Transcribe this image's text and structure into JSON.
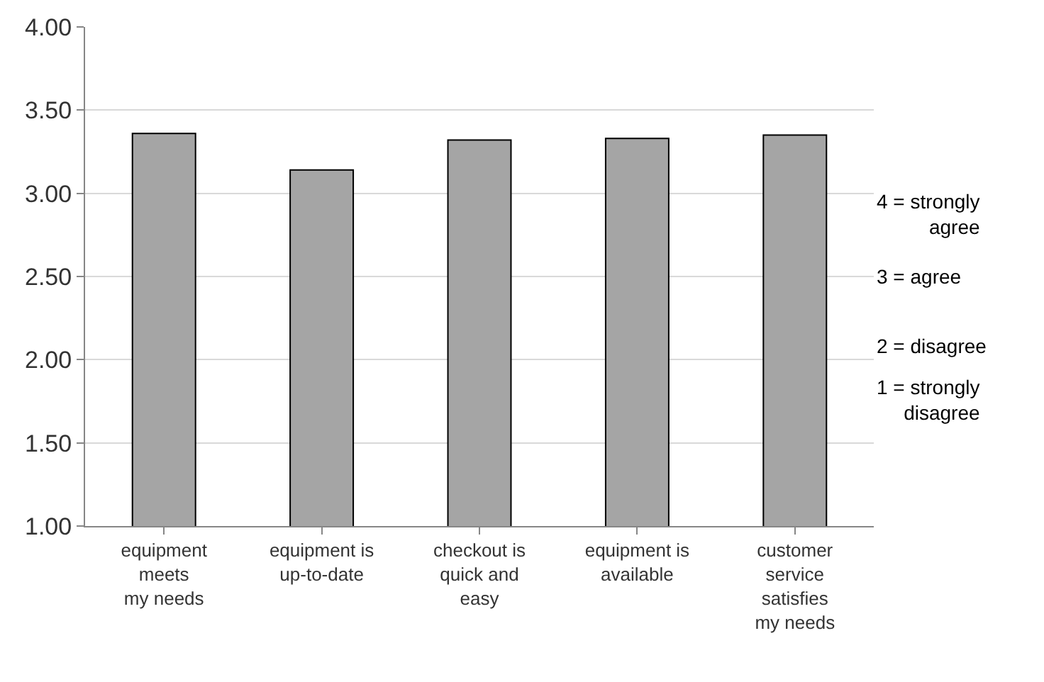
{
  "chart_data": {
    "type": "bar",
    "categories": [
      "equipment\nmeets\nmy needs",
      "equipment is\nup-to-date",
      "checkout is\nquick and\neasy",
      "equipment is\navailable",
      "customer\nservice\nsatisfies\nmy needs"
    ],
    "values": [
      3.36,
      3.14,
      3.32,
      3.33,
      3.35
    ],
    "color": "#a5a5a5",
    "ylim": [
      1,
      4
    ],
    "yticks": [
      {
        "value": 1,
        "label": "1.00"
      },
      {
        "value": 1.5,
        "label": "1.50"
      },
      {
        "value": 2,
        "label": "2.00"
      },
      {
        "value": 2.5,
        "label": "2.50"
      },
      {
        "value": 3,
        "label": "3.00"
      },
      {
        "value": 3.5,
        "label": "3.50"
      },
      {
        "value": 4,
        "label": "4.00"
      }
    ],
    "grid": "y",
    "annotations": [
      "4 = strongly\nagree",
      "3 = agree",
      "2 = disagree",
      "1 = strongly\ndisagree"
    ]
  }
}
